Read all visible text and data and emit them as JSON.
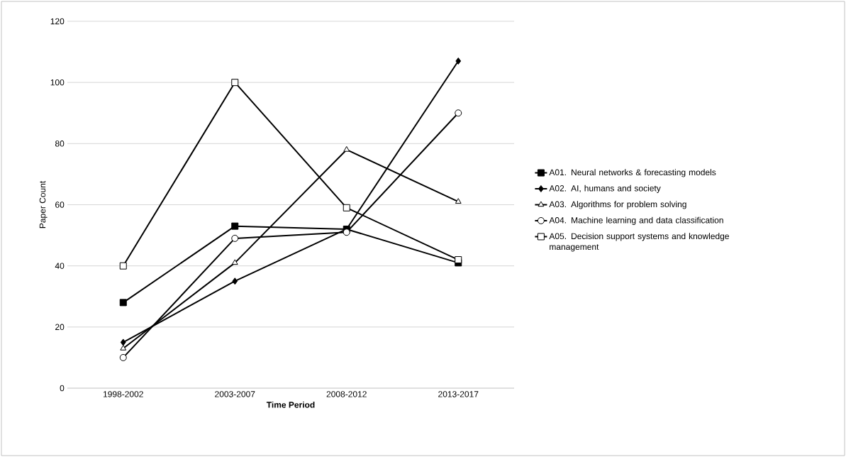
{
  "chart_data": {
    "type": "line",
    "xlabel": "Time Period",
    "ylabel": "Paper Count",
    "categories": [
      "1998-2002",
      "2003-2007",
      "2008-2012",
      "2013-2017"
    ],
    "ylim": [
      0,
      120
    ],
    "yticks": [
      0,
      20,
      40,
      60,
      80,
      100,
      120
    ],
    "grid": "y",
    "legend": "right",
    "line_style": "solid",
    "series": [
      {
        "name": "A01. Neural networks & forecasting models",
        "color": "#000000",
        "marker": "square",
        "values": [
          28,
          53,
          52,
          41
        ]
      },
      {
        "name": "A02. AI, humans and society",
        "color": "#000000",
        "marker": "diamond",
        "values": [
          15,
          35,
          52,
          107
        ]
      },
      {
        "name": "A03. Algorithms for problem solving",
        "color": "#000000",
        "marker": "triangle",
        "values": [
          13,
          41,
          78,
          61
        ]
      },
      {
        "name": "A04. Machine learning and data classification",
        "color": "#000000",
        "marker": "circle",
        "values": [
          10,
          49,
          51,
          90
        ]
      },
      {
        "name": "A05. Decision support systems and knowledge management",
        "color": "#000000",
        "marker": "square",
        "values": [
          40,
          100,
          59,
          42
        ]
      }
    ]
  }
}
